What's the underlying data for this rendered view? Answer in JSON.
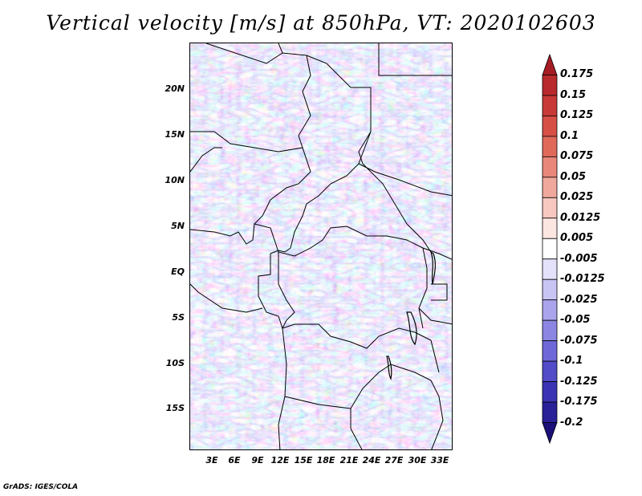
{
  "title": "Vertical velocity [m/s] at 850hPa, VT: 2020102603",
  "credit": "GrADS: IGES/COLA",
  "lat_labels": [
    "20N",
    "15N",
    "10N",
    "5N",
    "EQ",
    "5S",
    "10S",
    "15S"
  ],
  "lon_labels": [
    "3E",
    "6E",
    "9E",
    "12E",
    "15E",
    "18E",
    "21E",
    "24E",
    "27E",
    "30E",
    "33E"
  ],
  "colorbar": {
    "labels": [
      "0.175",
      "0.15",
      "0.125",
      "0.1",
      "0.075",
      "0.05",
      "0.025",
      "0.0125",
      "0.005",
      "-0.005",
      "-0.0125",
      "-0.025",
      "-0.05",
      "-0.075",
      "-0.1",
      "-0.125",
      "-0.175",
      "-0.2"
    ],
    "colors": [
      "#a51c24",
      "#b82a2c",
      "#c83a38",
      "#d65046",
      "#e06a5a",
      "#e8877a",
      "#f0a89c",
      "#f6c8c0",
      "#fce6e2",
      "#ffffff",
      "#e4e2fa",
      "#c8c4f4",
      "#aaa4ec",
      "#8c86e2",
      "#6e68d8",
      "#524cc8",
      "#3a34b4",
      "#2a2098",
      "#1a1078"
    ]
  },
  "map": {
    "palette_positive": "#e05050",
    "palette_negative": "#6060e0",
    "background": "#f4f0f6",
    "border_color": "#000000"
  }
}
